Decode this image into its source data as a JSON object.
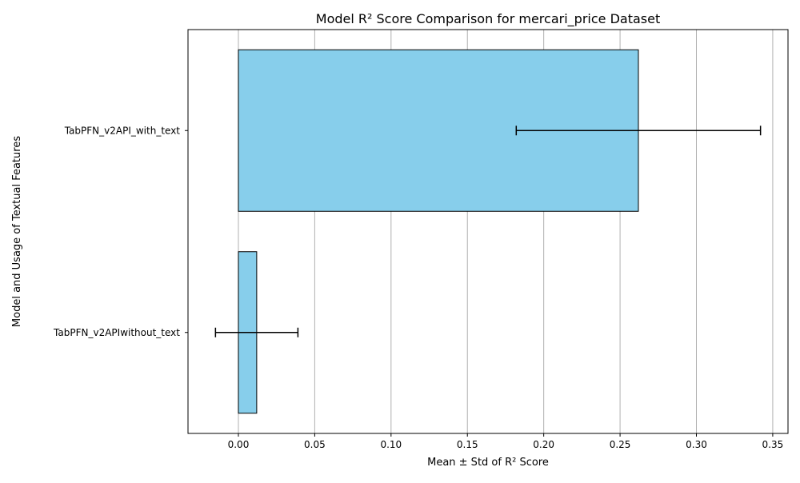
{
  "chart_data": {
    "type": "bar",
    "orientation": "horizontal",
    "title": "Model R² Score Comparison for mercari_price Dataset",
    "xlabel": "Mean ± Std of R² Score",
    "ylabel": "Model and Usage of Textual Features",
    "categories": [
      "TabPFN_v2APIwithout_text",
      "TabPFN_v2API_with_text"
    ],
    "series": [
      {
        "values": [
          0.012,
          0.262
        ],
        "errors": [
          0.027,
          0.08
        ]
      }
    ],
    "xlim": [
      -0.033,
      0.36
    ],
    "xticks": [
      0.0,
      0.05,
      0.1,
      0.15,
      0.2,
      0.25,
      0.3,
      0.35
    ],
    "xtick_labels": [
      "0.00",
      "0.05",
      "0.10",
      "0.15",
      "0.20",
      "0.25",
      "0.30",
      "0.35"
    ],
    "grid": "x",
    "legend": "none",
    "colors": {
      "bar_fill": "#87ceeb",
      "bar_edge": "#000000",
      "error_bar": "#000000",
      "grid": "#b0b0b0"
    }
  }
}
